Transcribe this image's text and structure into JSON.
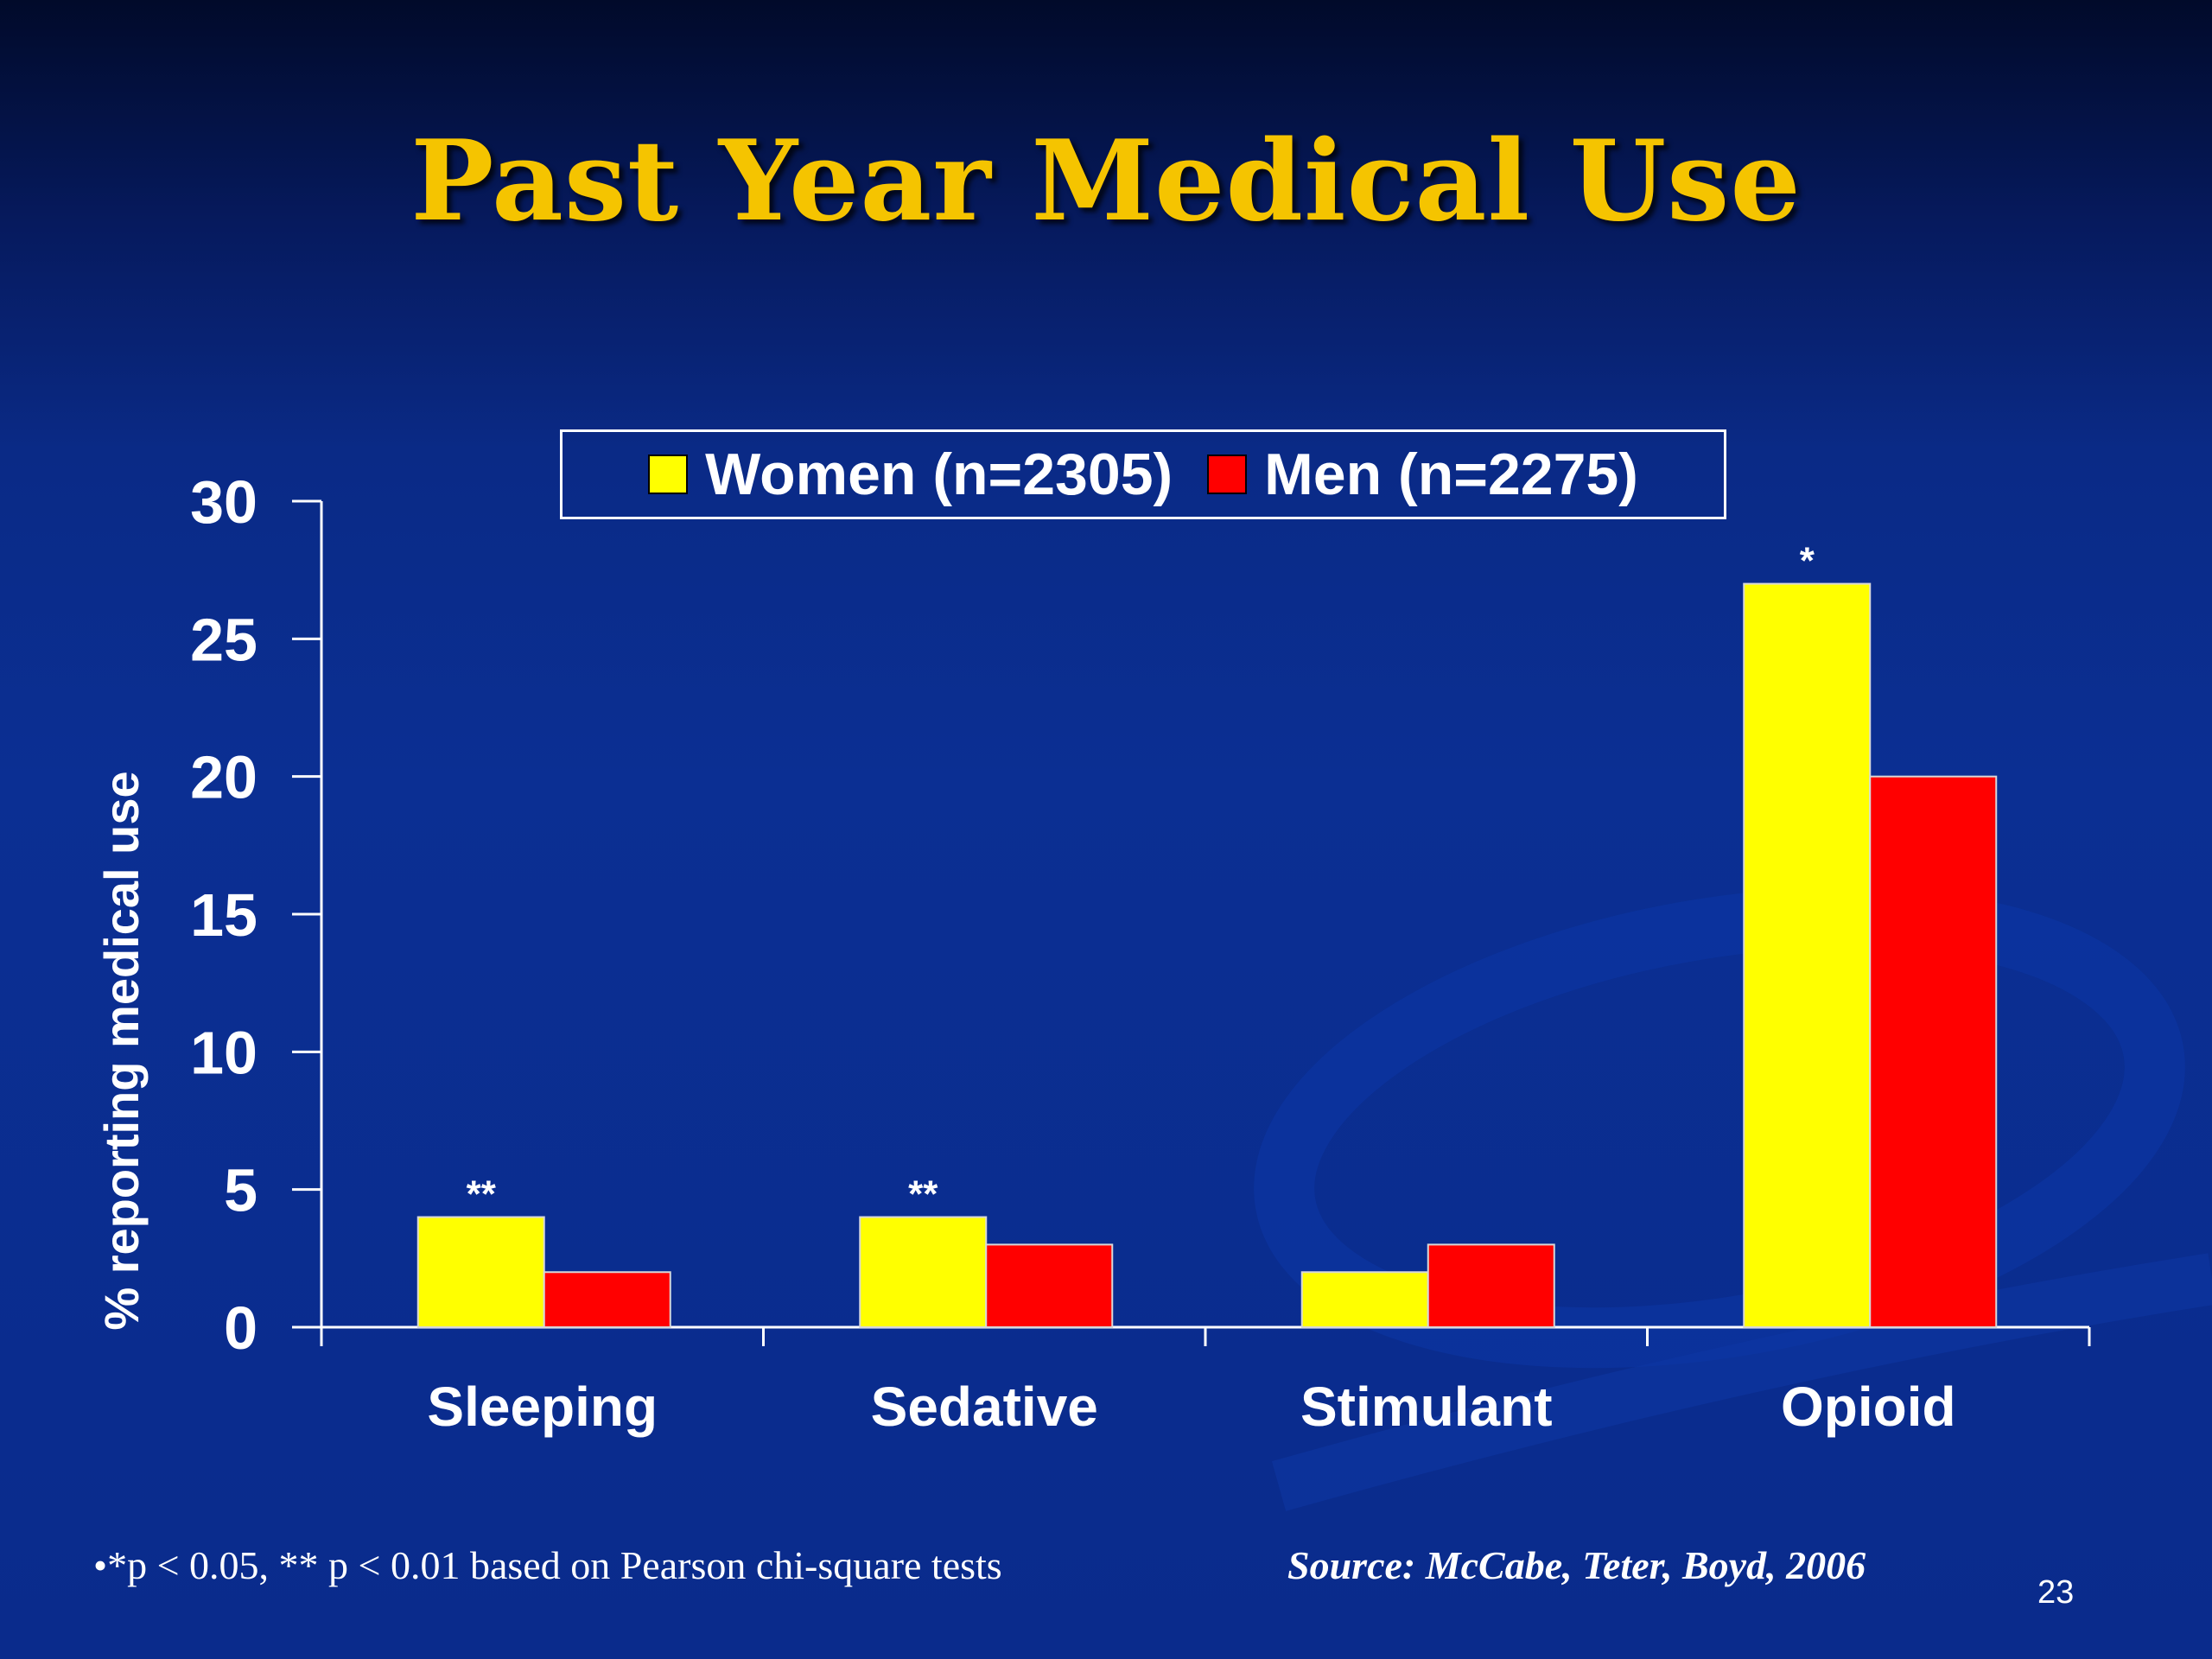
{
  "slide": {
    "title": "Past Year Medical Use",
    "footnote": "•*p < 0.05, ** p < 0.01 based on Pearson chi-square tests",
    "source": "Source: McCabe, Teter, Boyd, 2006",
    "page_number": "23"
  },
  "colors": {
    "background": "#0b2f93",
    "title": "#f5c400",
    "women": "#ffff00",
    "men": "#ff0000",
    "text": "#ffffff"
  },
  "chart_data": {
    "type": "bar",
    "title": "",
    "xlabel": "",
    "ylabel": "% reporting medical use",
    "ylim": [
      0,
      30
    ],
    "yticks": [
      0,
      5,
      10,
      15,
      20,
      25,
      30
    ],
    "categories": [
      "Sleeping",
      "Sedative",
      "Stimulant",
      "Opioid"
    ],
    "series": [
      {
        "name": "Women (n=2305)",
        "color": "#ffff00",
        "values": [
          4,
          4,
          2,
          27
        ]
      },
      {
        "name": "Men (n=2275)",
        "color": "#ff0000",
        "values": [
          2,
          3,
          3,
          20
        ]
      }
    ],
    "annotations": [
      "**",
      "**",
      "",
      "*"
    ],
    "legend_position": "top",
    "grid": false
  }
}
